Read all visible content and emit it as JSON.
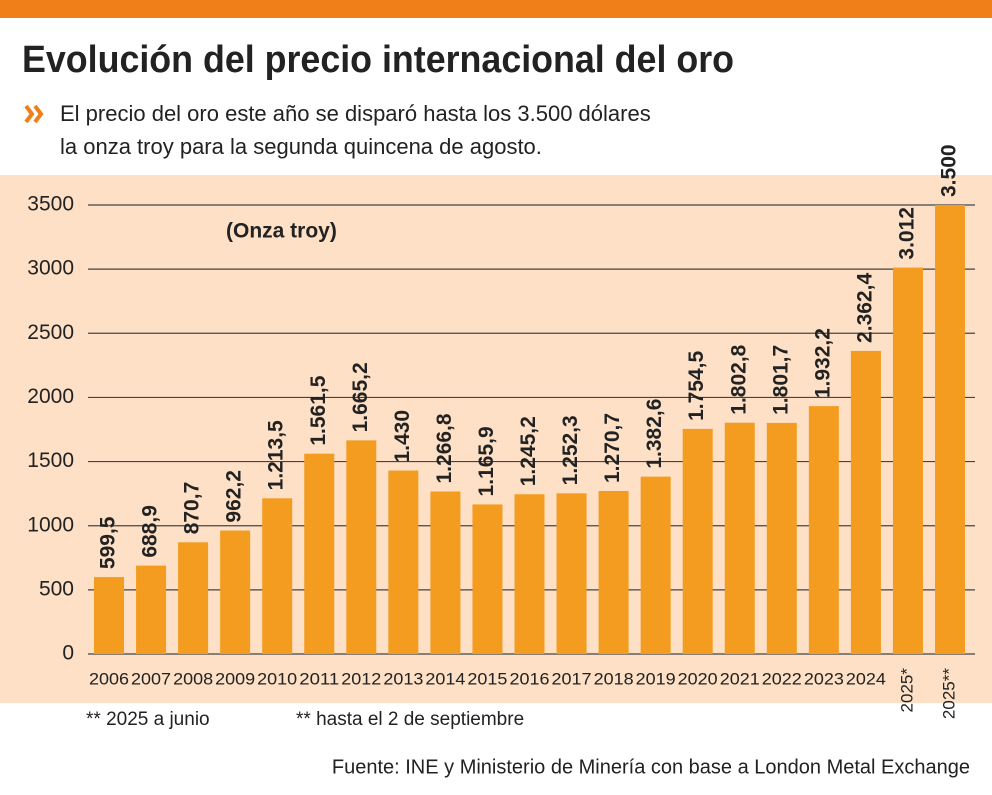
{
  "chart_data": {
    "type": "bar",
    "title": "Evolución del precio internacional del oro",
    "subtitle": [
      "El precio del oro este año se disparó  hasta los 3.500 dólares",
      "la onza troy para la segunda quincena de agosto."
    ],
    "annotation": "(Onza troy)",
    "categories": [
      "2006",
      "2007",
      "2008",
      "2009",
      "2010",
      "2011",
      "2012",
      "2013",
      "2014",
      "2015",
      "2016",
      "2017",
      "2018",
      "2019",
      "2020",
      "2021",
      "2022",
      "2023",
      "2024",
      "2025*",
      "2025**"
    ],
    "values": [
      599.5,
      688.9,
      870.7,
      962.2,
      1213.5,
      1561.5,
      1665.2,
      1430,
      1266.8,
      1165.9,
      1245.2,
      1252.3,
      1270.7,
      1382.6,
      1754.5,
      1802.8,
      1801.7,
      1932.2,
      2362.4,
      3012,
      3500
    ],
    "value_labels": [
      "599,5",
      "688,9",
      "870,7",
      "962,2",
      "1.213,5",
      "1.561,5",
      "1.665,2",
      "1.430",
      "1.266,8",
      "1.165,9",
      "1.245,2",
      "1.252,3",
      "1.270,7",
      "1.382,6",
      "1.754,5",
      "1.802,8",
      "1.801,7",
      "1.932,2",
      "2.362,4",
      "3.012",
      "3.500"
    ],
    "color": "#f39c1f",
    "ylim": [
      0,
      3500
    ],
    "yticks": [
      0,
      500,
      1000,
      1500,
      2000,
      2500,
      3000,
      3500
    ],
    "grid": true,
    "footnotes": [
      "** 2025 a junio",
      "** hasta el 2 de septiembre"
    ],
    "source": "Fuente: INE y Ministerio de Minería con base a London Metal Exchange"
  }
}
